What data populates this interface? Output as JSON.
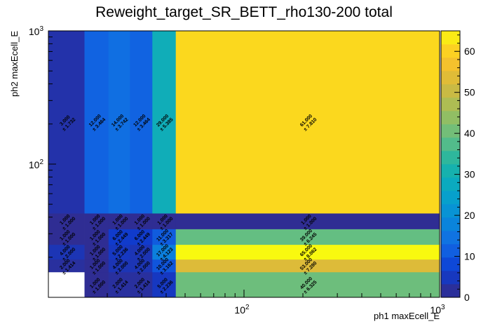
{
  "chart_data": {
    "type": "heatmap",
    "title": "Reweight_target_SR_BETT_rho130-200 total",
    "xlabel": "ph1 maxEcell_E",
    "ylabel": "ph2 maxEcell_E",
    "x_scale": "log",
    "y_scale": "log",
    "xlim": [
      10,
      1000
    ],
    "ylim": [
      10,
      1000
    ],
    "x_tick_labels": [
      {
        "value": 100,
        "base": "10",
        "exp": "2"
      },
      {
        "value": 1000,
        "base": "10",
        "exp": "3"
      }
    ],
    "y_tick_labels": [
      {
        "value": 100,
        "base": "10",
        "exp": "2"
      },
      {
        "value": 1000,
        "base": "10",
        "exp": "3"
      }
    ],
    "z_range": [
      0,
      65
    ],
    "colorbar_ticks": [
      "0",
      "10",
      "20",
      "30",
      "40",
      "50",
      "60"
    ],
    "grid": false,
    "x_edges": [
      10,
      15.3,
      20.3,
      26.1,
      34.0,
      44.8,
      1000
    ],
    "y_edges": [
      10,
      15.5,
      19.3,
      24.9,
      32.6,
      42.8,
      1000
    ],
    "cells": [
      {
        "xi": 1,
        "yi": 0,
        "value": 1.0,
        "error": 1.0,
        "label": "1.000",
        "err_label": "± 1.000"
      },
      {
        "xi": 2,
        "yi": 0,
        "value": 2.0,
        "error": 1.414,
        "label": "2.000",
        "err_label": "± 1.414"
      },
      {
        "xi": 3,
        "yi": 0,
        "value": 2.0,
        "error": 1.414,
        "label": "2.000",
        "err_label": "± 1.414"
      },
      {
        "xi": 4,
        "yi": 0,
        "value": 5.0,
        "error": 2.236,
        "label": "5.000",
        "err_label": "± 2.236"
      },
      {
        "xi": 5,
        "yi": 0,
        "value": 40.0,
        "error": 6.325,
        "label": "40.000",
        "err_label": "± 6.325"
      },
      {
        "xi": 0,
        "yi": 1,
        "value": 2.0,
        "error": 1.414,
        "label": "2.000",
        "err_label": "± 1.414"
      },
      {
        "xi": 1,
        "yi": 1,
        "value": 1.0,
        "error": 1.0,
        "label": "1.000",
        "err_label": "± 1.000"
      },
      {
        "xi": 2,
        "yi": 1,
        "value": 4.0,
        "error": 2.0,
        "label": "4.000",
        "err_label": "± 2.000"
      },
      {
        "xi": 3,
        "yi": 1,
        "value": 4.0,
        "error": 2.0,
        "label": "4.000",
        "err_label": "± 2.000"
      },
      {
        "xi": 4,
        "yi": 1,
        "value": 10.0,
        "error": 3.162,
        "label": "10.000",
        "err_label": "± 3.162"
      },
      {
        "xi": 5,
        "yi": 1,
        "value": 53.0,
        "error": 7.28,
        "label": "53.000",
        "err_label": "± 7.280"
      },
      {
        "xi": 0,
        "yi": 2,
        "value": 4.0,
        "error": 2.0,
        "label": "4.000",
        "err_label": "± 2.000"
      },
      {
        "xi": 1,
        "yi": 2,
        "value": 1.0,
        "error": 1.0,
        "label": "1.000",
        "err_label": "± 1.000"
      },
      {
        "xi": 2,
        "yi": 2,
        "value": 5.0,
        "error": 2.236,
        "label": "5.000",
        "err_label": "± 2.236"
      },
      {
        "xi": 3,
        "yi": 2,
        "value": 4.0,
        "error": 2.0,
        "label": "4.000",
        "err_label": "± 2.000"
      },
      {
        "xi": 4,
        "yi": 2,
        "value": 17.0,
        "error": 4.123,
        "label": "17.000",
        "err_label": "± 4.123"
      },
      {
        "xi": 5,
        "yi": 2,
        "value": 65.0,
        "error": 8.062,
        "label": "65.000",
        "err_label": "± 8.062"
      },
      {
        "xi": 0,
        "yi": 3,
        "value": 1.0,
        "error": 1.0,
        "label": "1.000",
        "err_label": "± 1.000"
      },
      {
        "xi": 1,
        "yi": 3,
        "value": 1.0,
        "error": 1.0,
        "label": "1.000",
        "err_label": "± 1.000"
      },
      {
        "xi": 2,
        "yi": 3,
        "value": 6.0,
        "error": 2.449,
        "label": "6.000",
        "err_label": "± 2.449"
      },
      {
        "xi": 3,
        "yi": 3,
        "value": 6.0,
        "error": 2.449,
        "label": "6.000",
        "err_label": "± 2.449"
      },
      {
        "xi": 4,
        "yi": 3,
        "value": 11.0,
        "error": 3.317,
        "label": "11.000",
        "err_label": "± 3.317"
      },
      {
        "xi": 5,
        "yi": 3,
        "value": 39.0,
        "error": 6.245,
        "label": "39.000",
        "err_label": "± 6.245"
      },
      {
        "xi": 0,
        "yi": 4,
        "value": 1.0,
        "error": 1.0,
        "label": "1.000",
        "err_label": "± 1.000"
      },
      {
        "xi": 1,
        "yi": 4,
        "value": 1.0,
        "error": 1.0,
        "label": "1.000",
        "err_label": "± 1.000"
      },
      {
        "xi": 2,
        "yi": 4,
        "value": 1.0,
        "error": 1.0,
        "label": "1.000",
        "err_label": "± 1.000"
      },
      {
        "xi": 3,
        "yi": 4,
        "value": 1.0,
        "error": 1.0,
        "label": "1.000",
        "err_label": "± 1.000"
      },
      {
        "xi": 4,
        "yi": 4,
        "value": 1.0,
        "error": 1.0,
        "label": "1.000",
        "err_label": "± 1.000"
      },
      {
        "xi": 5,
        "yi": 4,
        "value": 1.0,
        "error": 1.0,
        "label": "1.000",
        "err_label": "± 1.000"
      },
      {
        "xi": 0,
        "yi": 5,
        "value": 3.0,
        "error": 1.732,
        "label": "3.000",
        "err_label": "± 1.732"
      },
      {
        "xi": 1,
        "yi": 5,
        "value": 12.0,
        "error": 3.464,
        "label": "12.000",
        "err_label": "± 3.464"
      },
      {
        "xi": 2,
        "yi": 5,
        "value": 14.0,
        "error": 3.742,
        "label": "14.000",
        "err_label": "± 3.742"
      },
      {
        "xi": 3,
        "yi": 5,
        "value": 12.0,
        "error": 3.464,
        "label": "12.000",
        "err_label": "± 3.464"
      },
      {
        "xi": 4,
        "yi": 5,
        "value": 29.0,
        "error": 5.385,
        "label": "29.000",
        "err_label": "± 5.385"
      },
      {
        "xi": 5,
        "yi": 5,
        "value": 61.0,
        "error": 7.81,
        "label": "61.000",
        "err_label": "± 7.810"
      }
    ]
  }
}
